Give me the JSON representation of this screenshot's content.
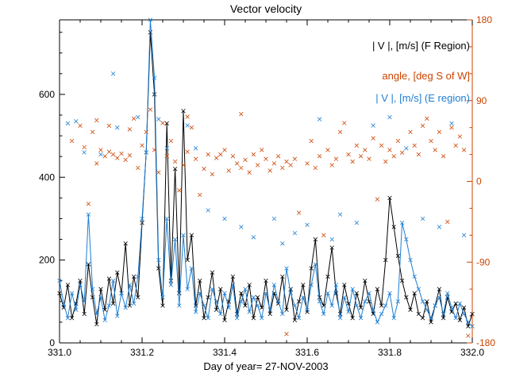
{
  "title": "Vector velocity",
  "xlabel": "Day of year= 27-NOV-2003",
  "colors": {
    "f_region": "#000000",
    "angle": "#cc4400",
    "e_region": "#1e7fd2",
    "frame": "#000000"
  },
  "legend": [
    {
      "label": "| V |, [m/s] (F Region)",
      "color": "#000000"
    },
    {
      "label": "angle, [deg S of W]",
      "color": "#cc4400"
    },
    {
      "label": "| V |, [m/s] (E region)",
      "color": "#1e7fd2"
    }
  ],
  "chart_data": {
    "type": "line",
    "title": "Vector velocity",
    "xlabel": "Day of year= 27-NOV-2003",
    "x_range": [
      331.0,
      332.0
    ],
    "x_ticks": [
      331.0,
      331.2,
      331.4,
      331.6,
      331.8,
      332.0
    ],
    "x_tick_labels": [
      "331.0",
      "331.2",
      "331.4",
      "331.6",
      "331.8",
      "332.0"
    ],
    "x_minor_step": 0.05,
    "y_left": {
      "range": [
        0,
        780
      ],
      "ticks": [
        0,
        200,
        400,
        600
      ],
      "tick_labels": [
        "0",
        "200",
        "400",
        "600"
      ],
      "minor_step": 50,
      "color": "#000000"
    },
    "y_right": {
      "range": [
        -180,
        180
      ],
      "ticks": [
        -180,
        -90,
        0,
        90,
        180
      ],
      "tick_labels": [
        "-180",
        "-90",
        "0",
        "90",
        "180"
      ],
      "minor_step": 30,
      "color": "#cc4400"
    },
    "series": [
      {
        "name": "F_region_velocity_m_per_s",
        "legend": "| V |, [m/s] (F Region)",
        "axis": "left",
        "type": "line",
        "marker": "x",
        "color": "#000000",
        "x_start": 331.0,
        "x_step": 0.01,
        "y": [
          120,
          85,
          140,
          60,
          95,
          150,
          70,
          190,
          110,
          45,
          130,
          80,
          155,
          95,
          170,
          120,
          240,
          90,
          160,
          110,
          290,
          460,
          750,
          600,
          180,
          90,
          530,
          150,
          420,
          120,
          560,
          200,
          260,
          90,
          150,
          60,
          110,
          170,
          80,
          130,
          55,
          100,
          160,
          70,
          120,
          90,
          140,
          60,
          110,
          85,
          150,
          70,
          120,
          95,
          160,
          80,
          130,
          55,
          100,
          140,
          75,
          180,
          250,
          110,
          90,
          160,
          230,
          120,
          70,
          140,
          95,
          60,
          120,
          85,
          150,
          100,
          70,
          130,
          90,
          200,
          350,
          280,
          210,
          150,
          110,
          80,
          120,
          70,
          60,
          100,
          50,
          90,
          130,
          60,
          110,
          75,
          95,
          55,
          85,
          40,
          70
        ]
      },
      {
        "name": "E_region_velocity_m_per_s",
        "legend": "| V |, [m/s] (E region)",
        "axis": "left",
        "type": "line",
        "marker": "x",
        "color": "#1e7fd2",
        "x_start": 331.0,
        "x_step": 0.01,
        "y": [
          150,
          95,
          60,
          120,
          80,
          140,
          100,
          310,
          130,
          70,
          110,
          55,
          90,
          150,
          65,
          120,
          85,
          140,
          95,
          160,
          300,
          460,
          780,
          640,
          200,
          110,
          300,
          140,
          250,
          90,
          260,
          130,
          180,
          75,
          120,
          90,
          60,
          130,
          100,
          70,
          120,
          85,
          140,
          60,
          100,
          130,
          75,
          110,
          90,
          60,
          120,
          80,
          140,
          100,
          70,
          180,
          120,
          90,
          60,
          110,
          80,
          140,
          190,
          100,
          70,
          120,
          90,
          140,
          60,
          110,
          75,
          130,
          90,
          60,
          100,
          120,
          80,
          50,
          70,
          90,
          120,
          60,
          100,
          290,
          250,
          200,
          160,
          130,
          100,
          80,
          60,
          90,
          110,
          70,
          120,
          85,
          60,
          95,
          70,
          50,
          40
        ]
      },
      {
        "name": "angle_deg_S_of_W",
        "legend": "angle, [deg S of W]",
        "axis": "right",
        "type": "scatter",
        "marker": "x",
        "color": "#cc4400",
        "points": [
          [
            331.03,
            45
          ],
          [
            331.05,
            62
          ],
          [
            331.06,
            38
          ],
          [
            331.07,
            -25
          ],
          [
            331.08,
            55
          ],
          [
            331.09,
            20
          ],
          [
            331.1,
            35
          ],
          [
            331.11,
            28
          ],
          [
            331.12,
            33
          ],
          [
            331.13,
            30
          ],
          [
            331.14,
            26
          ],
          [
            331.15,
            31
          ],
          [
            331.16,
            24
          ],
          [
            331.17,
            29
          ],
          [
            331.18,
            70
          ],
          [
            331.19,
            15
          ],
          [
            331.2,
            40
          ],
          [
            331.21,
            55
          ],
          [
            331.22,
            80
          ],
          [
            331.23,
            35
          ],
          [
            331.24,
            10
          ],
          [
            331.25,
            65
          ],
          [
            331.26,
            28
          ],
          [
            331.27,
            45
          ],
          [
            331.28,
            22
          ],
          [
            331.29,
            -10
          ],
          [
            331.3,
            18
          ],
          [
            331.31,
            33
          ],
          [
            331.32,
            60
          ],
          [
            331.33,
            25
          ],
          [
            331.34,
            -15
          ],
          [
            331.35,
            14
          ],
          [
            331.36,
            30
          ],
          [
            331.37,
            8
          ],
          [
            331.38,
            26
          ],
          [
            331.4,
            35
          ],
          [
            331.41,
            12
          ],
          [
            331.42,
            28
          ],
          [
            331.43,
            20
          ],
          [
            331.44,
            15
          ],
          [
            331.45,
            24
          ],
          [
            331.46,
            10
          ],
          [
            331.47,
            30
          ],
          [
            331.48,
            18
          ],
          [
            331.5,
            25
          ],
          [
            331.51,
            12
          ],
          [
            331.52,
            20
          ],
          [
            331.53,
            28
          ],
          [
            331.54,
            15
          ],
          [
            331.55,
            22
          ],
          [
            331.56,
            18
          ],
          [
            331.57,
            25
          ],
          [
            331.58,
            -35
          ],
          [
            331.6,
            20
          ],
          [
            331.61,
            45
          ],
          [
            331.62,
            15
          ],
          [
            331.63,
            28
          ],
          [
            331.64,
            -60
          ],
          [
            331.65,
            35
          ],
          [
            331.66,
            18
          ],
          [
            331.67,
            25
          ],
          [
            331.68,
            55
          ],
          [
            331.7,
            30
          ],
          [
            331.71,
            22
          ],
          [
            331.72,
            40
          ],
          [
            331.73,
            28
          ],
          [
            331.74,
            35
          ],
          [
            331.75,
            25
          ],
          [
            331.76,
            48
          ],
          [
            331.77,
            -20
          ],
          [
            331.78,
            40
          ],
          [
            331.79,
            22
          ],
          [
            331.8,
            35
          ],
          [
            331.81,
            28
          ],
          [
            331.82,
            45
          ],
          [
            331.83,
            32
          ],
          [
            331.85,
            55
          ],
          [
            331.86,
            40
          ],
          [
            331.87,
            30
          ],
          [
            331.88,
            62
          ],
          [
            331.9,
            45
          ],
          [
            331.91,
            35
          ],
          [
            331.92,
            55
          ],
          [
            331.93,
            28
          ],
          [
            331.94,
            -45
          ],
          [
            331.95,
            60
          ],
          [
            331.96,
            40
          ],
          [
            331.97,
            50
          ],
          [
            331.98,
            35
          ],
          [
            331.99,
            -172
          ],
          [
            331.55,
            -170
          ],
          [
            331.89,
            70
          ],
          [
            331.44,
            75
          ],
          [
            331.69,
            65
          ],
          [
            331.31,
            72
          ],
          [
            331.09,
            68
          ],
          [
            331.12,
            62
          ],
          [
            331.17,
            58
          ],
          [
            331.39,
            30
          ],
          [
            331.49,
            35
          ]
        ]
      },
      {
        "name": "E_region_isolated_points",
        "legend": "| V |, [m/s] (E region)",
        "axis": "left",
        "type": "scatter",
        "marker": "x",
        "color": "#1e7fd2",
        "points": [
          [
            331.02,
            530
          ],
          [
            331.04,
            535
          ],
          [
            331.06,
            460
          ],
          [
            331.1,
            455
          ],
          [
            331.13,
            650
          ],
          [
            331.14,
            520
          ],
          [
            331.19,
            545
          ],
          [
            331.24,
            540
          ],
          [
            331.26,
            470
          ],
          [
            331.31,
            525
          ],
          [
            331.36,
            320
          ],
          [
            331.4,
            300
          ],
          [
            331.44,
            280
          ],
          [
            331.52,
            300
          ],
          [
            331.57,
            265
          ],
          [
            331.6,
            285
          ],
          [
            331.63,
            540
          ],
          [
            331.68,
            310
          ],
          [
            331.72,
            290
          ],
          [
            331.76,
            525
          ],
          [
            331.8,
            545
          ],
          [
            331.84,
            470
          ],
          [
            331.88,
            300
          ],
          [
            331.92,
            280
          ],
          [
            331.95,
            530
          ],
          [
            331.98,
            260
          ],
          [
            331.33,
            470
          ],
          [
            331.47,
            255
          ],
          [
            331.54,
            240
          ],
          [
            331.66,
            250
          ]
        ]
      }
    ],
    "legend_position": "top-right-inside",
    "grid": false
  }
}
